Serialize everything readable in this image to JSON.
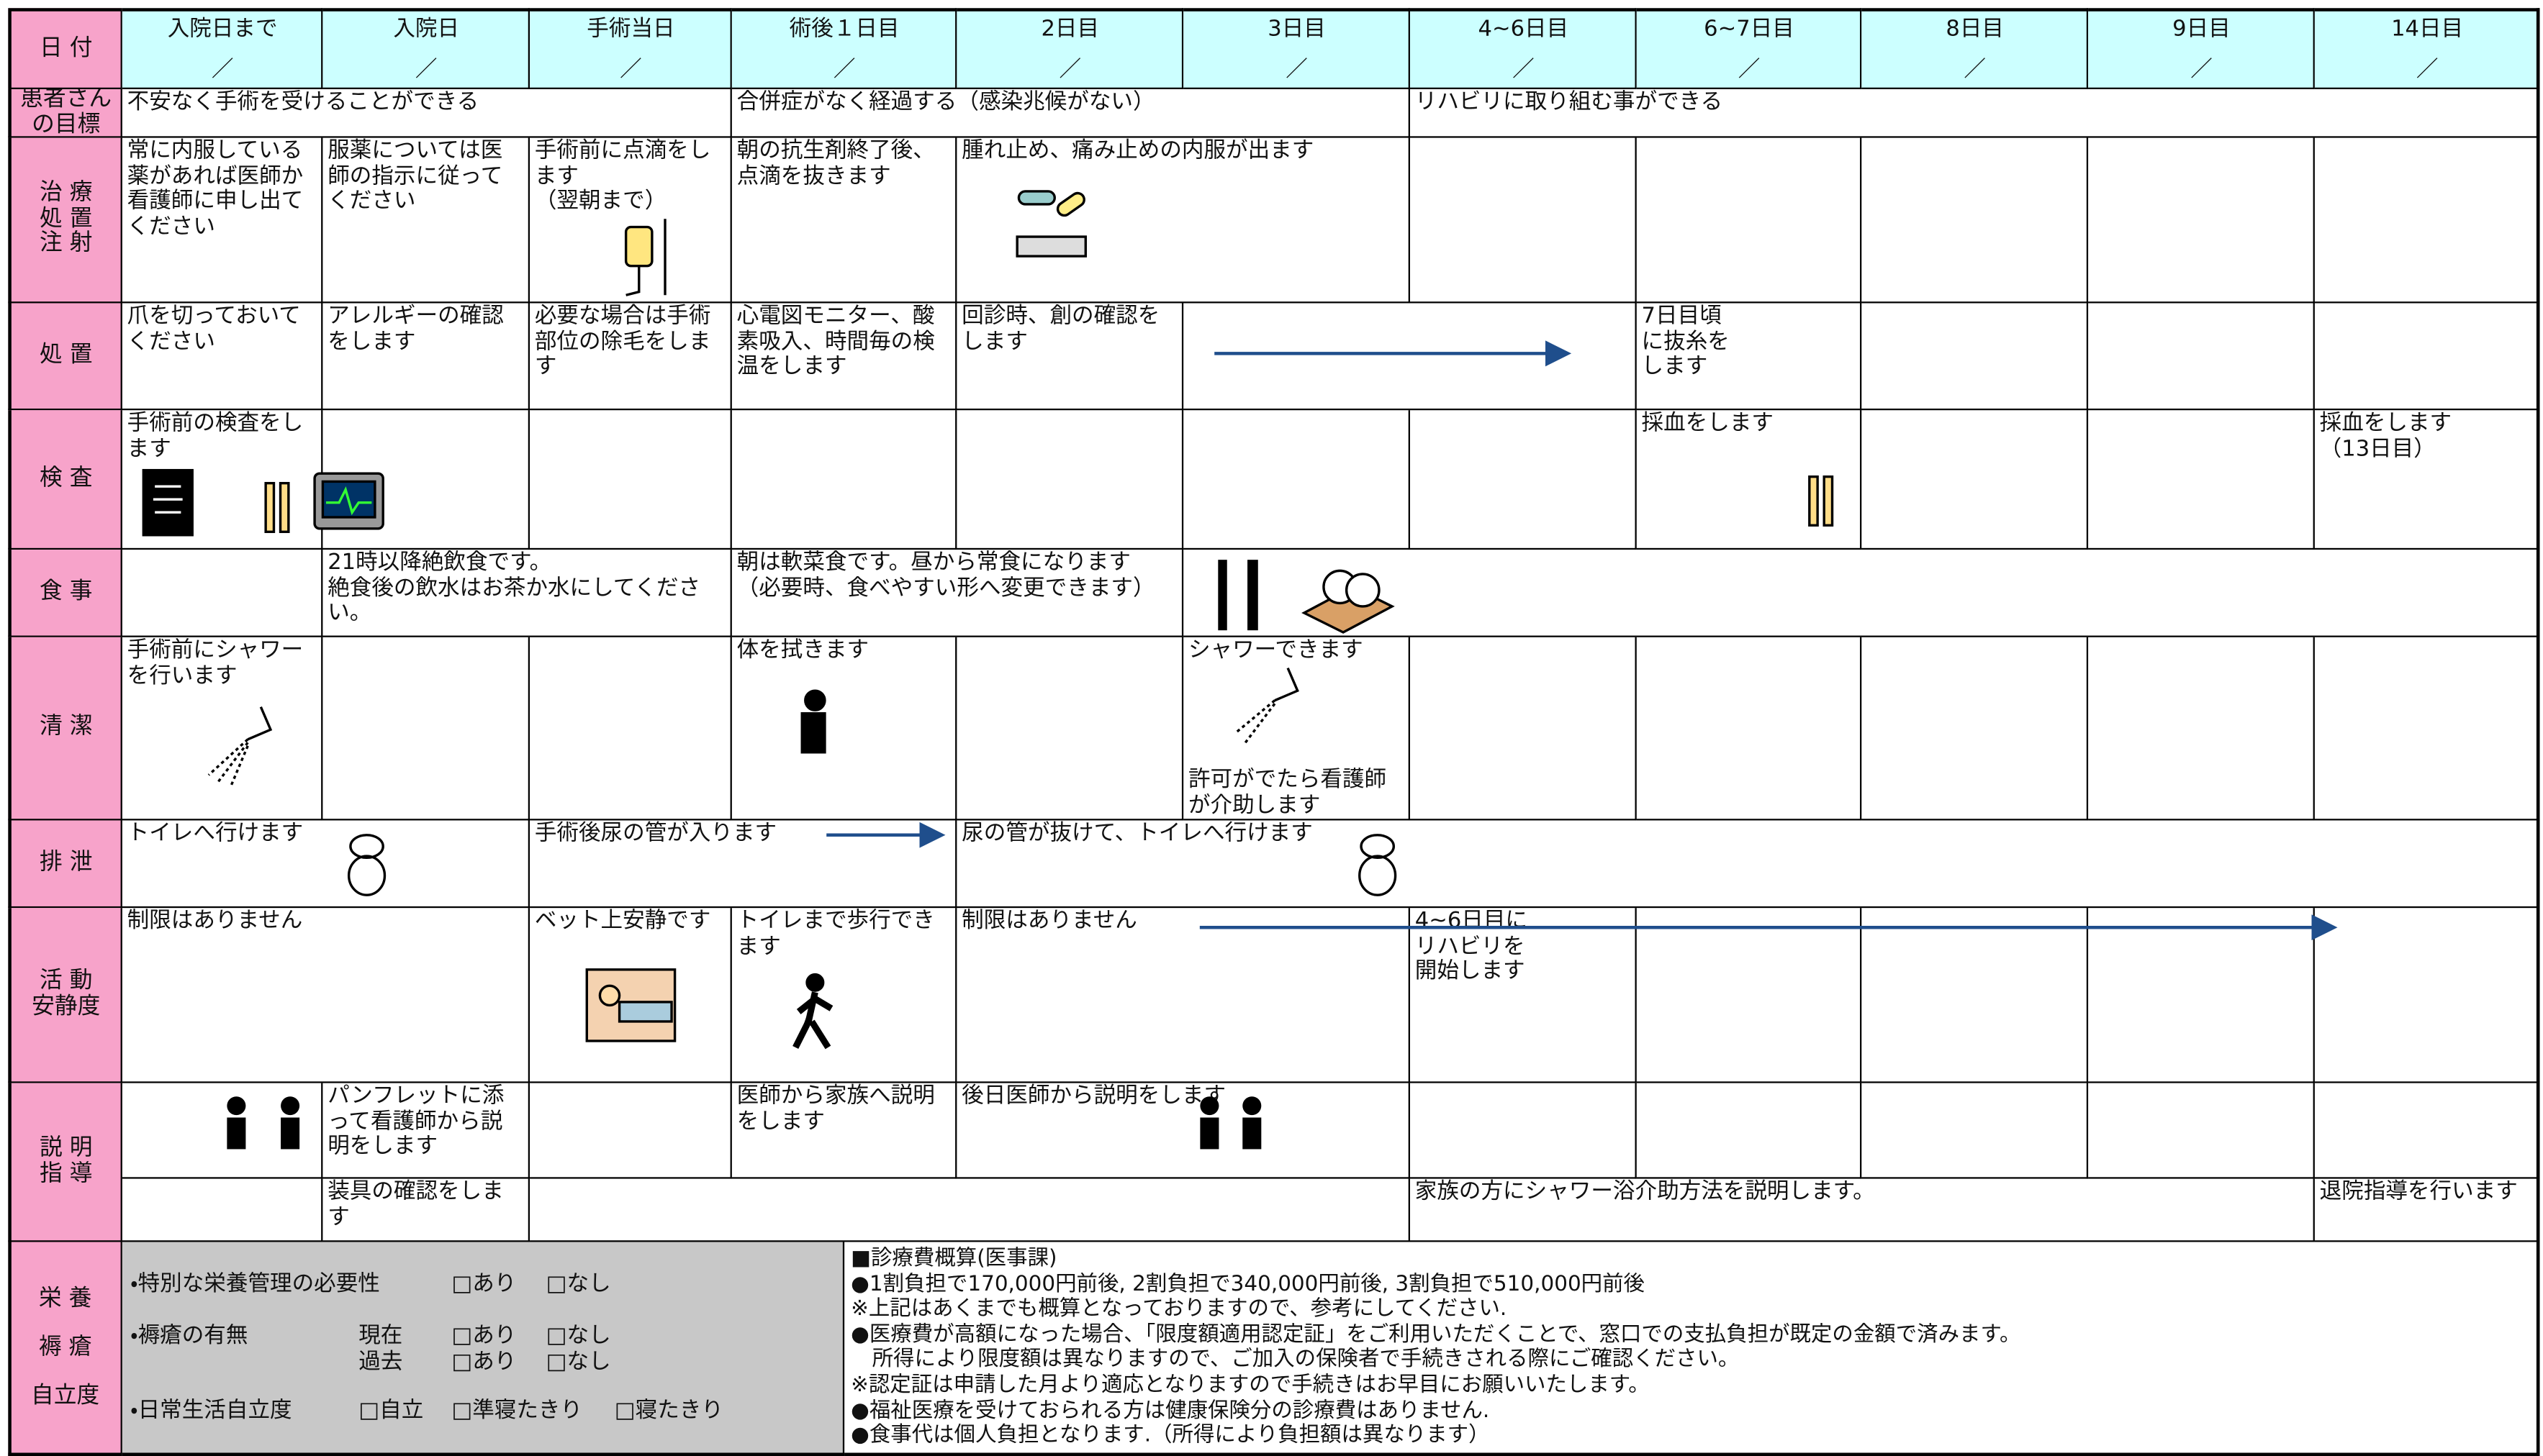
{
  "header": {
    "label": "日 付",
    "columns": [
      "入院日まで",
      "入院日",
      "手術当日",
      "術後１日目",
      "2日目",
      "3日目",
      "4~6日目",
      "6~7日目",
      "8日目",
      "9日目",
      "14日目"
    ],
    "slash": "／"
  },
  "rows": [
    {
      "label": "患者さん\nの目標",
      "cells": [
        "不安なく手術を受けることができる",
        "合併症がなく経過する（感染兆候がない）",
        "リハビリに取り組む事ができる"
      ]
    },
    {
      "label": "治 療\n処 置\n注 射",
      "cells": [
        "常に内服している薬があれば医師か看護師に申し出てください",
        "服薬については医師の指示に従ってください",
        "手術前に点滴をします\n（翌朝まで）",
        "朝の抗生剤終了後、点滴を抜きます",
        "腫れ止め、痛み止めの内服が出ます"
      ]
    },
    {
      "label": "処 置",
      "cells": [
        "爪を切っておいてください",
        "アレルギーの確認をします",
        "必要な場合は手術部位の除毛をします",
        "心電図モニター、酸素吸入、時間毎の検温をします",
        "回診時、創の確認をします",
        "7日目頃\nに抜糸を\nします"
      ]
    },
    {
      "label": "検 査",
      "cells": [
        "手術前の検査をします",
        "採血をします",
        "採血をします\n（13日目）"
      ]
    },
    {
      "label": "食 事",
      "cells": [
        "21時以降絶飲食です。\n絶食後の飲水はお茶か水にしてください。",
        "朝は軟菜食です。昼から常食になります\n（必要時、食べやすい形へ変更できます）"
      ]
    },
    {
      "label": "清 潔",
      "cells": [
        "手術前にシャワーを行います",
        "体を拭きます",
        "シャワーできます",
        "許可がでたら看護師が介助します"
      ]
    },
    {
      "label": "排 泄",
      "cells": [
        "トイレへ行けます",
        "手術後尿の管が入ります",
        "尿の管が抜けて、トイレへ行けます"
      ]
    },
    {
      "label": "活 動\n安静度",
      "cells": [
        "制限はありません",
        "ベット上安静です",
        "トイレまで歩行できます",
        "制限はありません",
        "4~6日目に\nリハビリを\n開始します"
      ]
    },
    {
      "label": "説 明\n指 導",
      "cells": [
        "パンフレットに添って看護師から説明をします",
        "医師から家族へ説明をします",
        "後日医師から説明をします"
      ]
    },
    {
      "cells": [
        "装具の確認をします",
        "家族の方にシャワー浴介助方法を説明します。",
        "退院指導を行います"
      ]
    }
  ],
  "bottom": {
    "labels": [
      "栄 養",
      "褥 瘡",
      "自立度"
    ],
    "nutrition": {
      "item": "・特別な栄養管理の必要性",
      "options": [
        "□あり",
        "□なし"
      ]
    },
    "pressure_ulcer": {
      "item": "・褥瘡の有無",
      "rows": [
        {
          "label": "現在",
          "options": [
            "□あり",
            "□なし"
          ]
        },
        {
          "label": "過去",
          "options": [
            "□あり",
            "□なし"
          ]
        }
      ]
    },
    "independence": {
      "item": "・日常生活自立度",
      "options": [
        "□自立",
        "□準寝たきり",
        "□寝たきり"
      ]
    },
    "notes": [
      "■診療費概算(医事課)",
      "●1割負担で170,000円前後, 2割負担で340,000円前後, 3割負担で510,000円前後",
      "※上記はあくまでも概算となっておりますので、参考にしてください.",
      "●医療費が高額になった場合、「限度額適用認定証」をご利用いただくことで、窓口での支払負担が既定の金額で済みます。",
      "　所得により限度額は異なりますので、ご加入の保険者で手続きされる際にご確認ください。",
      "※認定証は申請した月より適応となりますので手続きはお早目にお願いいたします。",
      "●福祉医療を受けておられる方は健康保険分の診療費はありません.",
      "●食事代は個人負担となります.（所得により負担額は異なります）"
    ]
  }
}
